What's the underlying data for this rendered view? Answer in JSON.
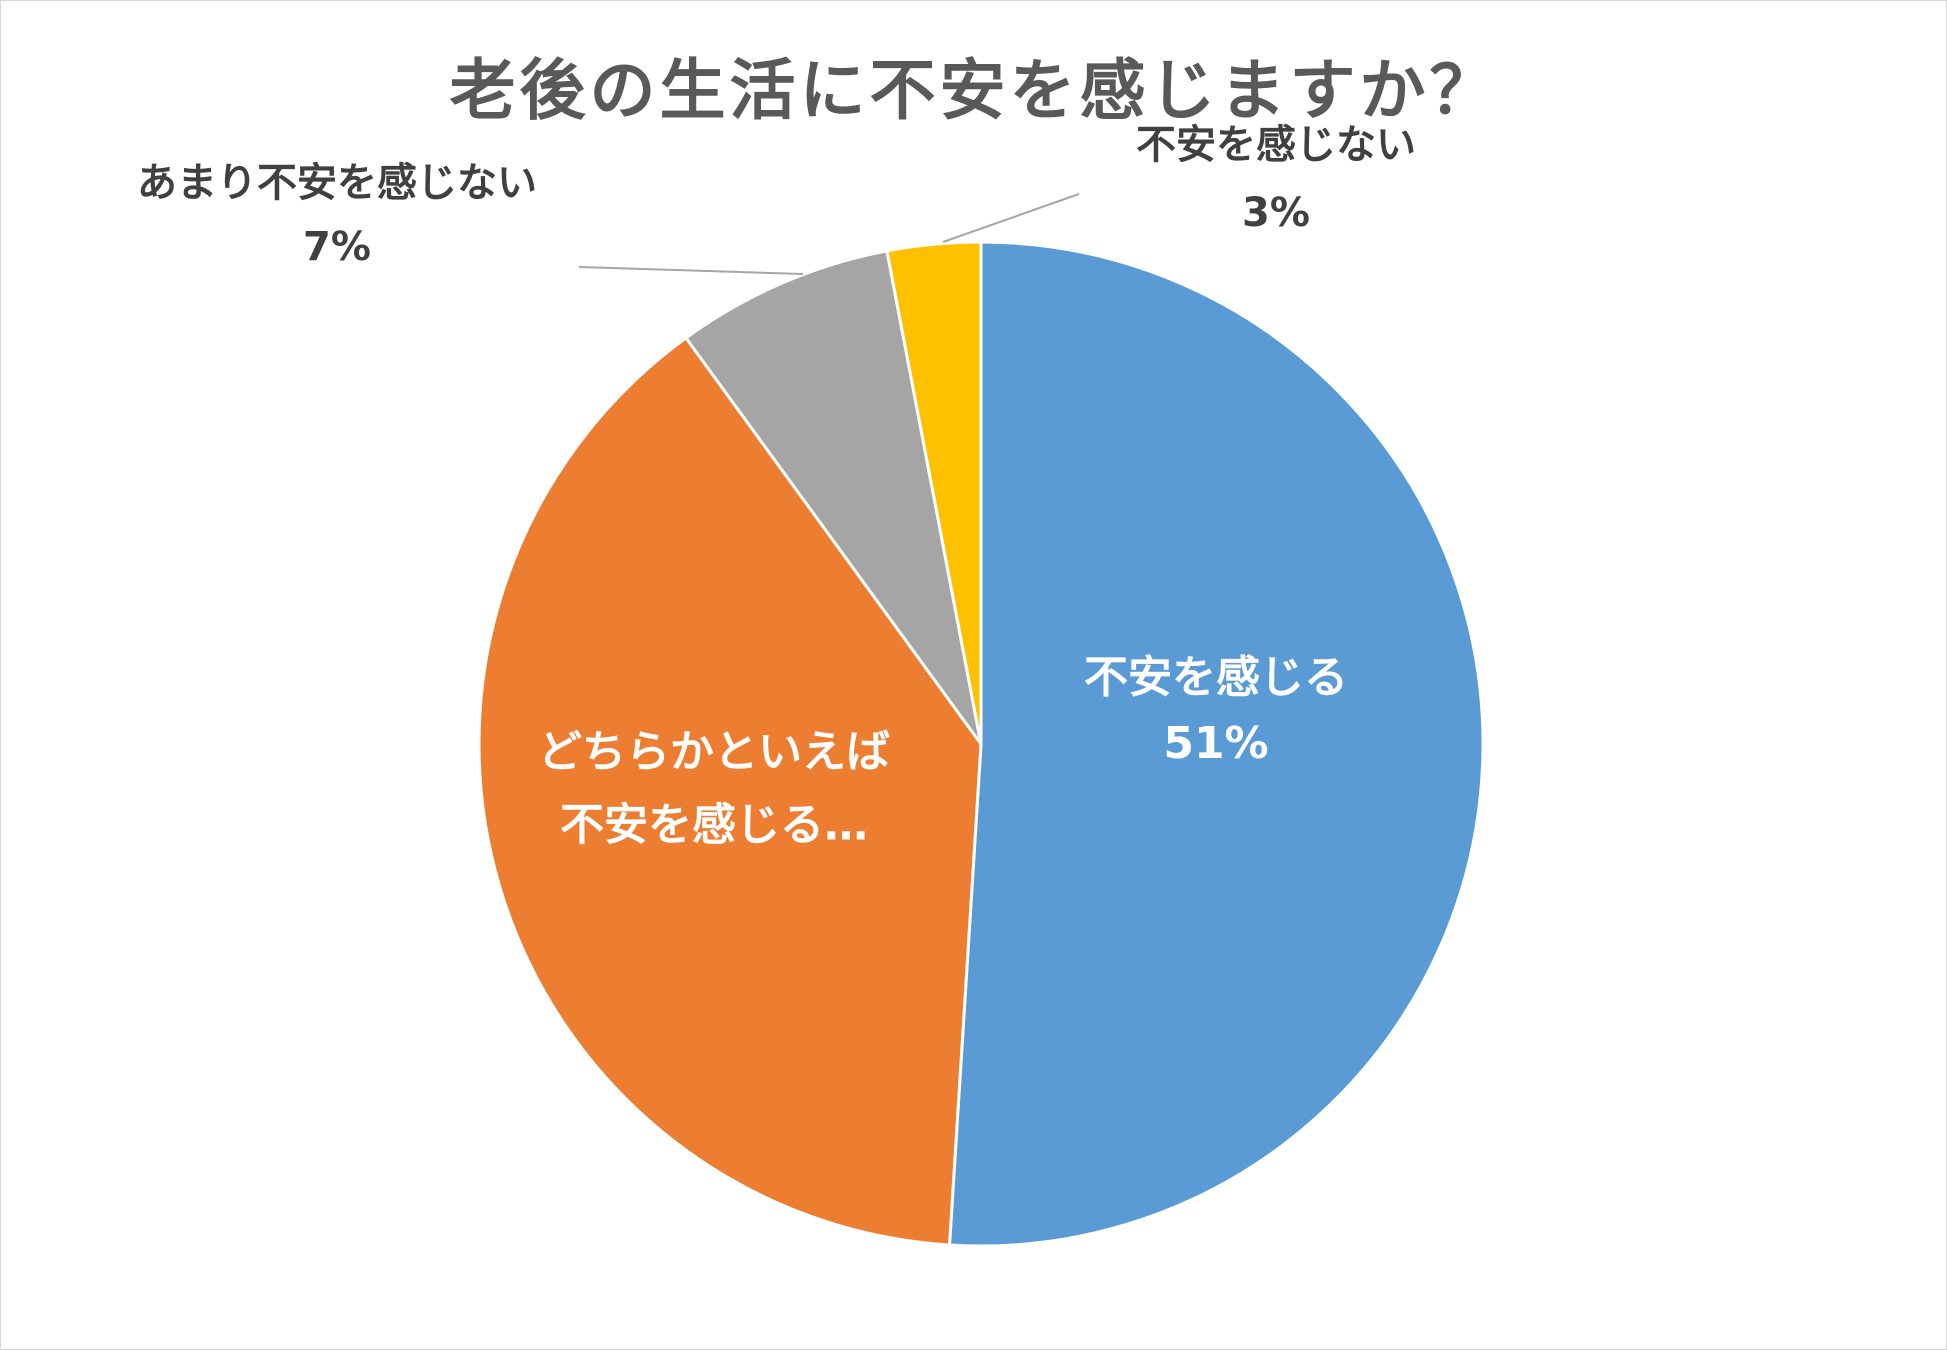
{
  "chart_data": {
    "type": "pie",
    "title": "老後の生活に不安を感じますか？",
    "slices": [
      {
        "label": "不安を感じる",
        "value": 51,
        "value_text": "51%",
        "color": "#5b9bd5"
      },
      {
        "label_lines": [
          "どちらかといえば",
          "不安を感じる…"
        ],
        "label": "どちらかといえば不安を感じる…",
        "value": 39,
        "value_text": "",
        "color": "#ed7d31"
      },
      {
        "label": "あまり不安を感じない",
        "value": 7,
        "value_text": "7%",
        "color": "#a5a5a5"
      },
      {
        "label": "不安を感じない",
        "value": 3,
        "value_text": "3%",
        "color": "#ffc000"
      }
    ],
    "start_angle_deg": 0,
    "direction": "clockwise",
    "legend": "none",
    "data_labels": true
  }
}
